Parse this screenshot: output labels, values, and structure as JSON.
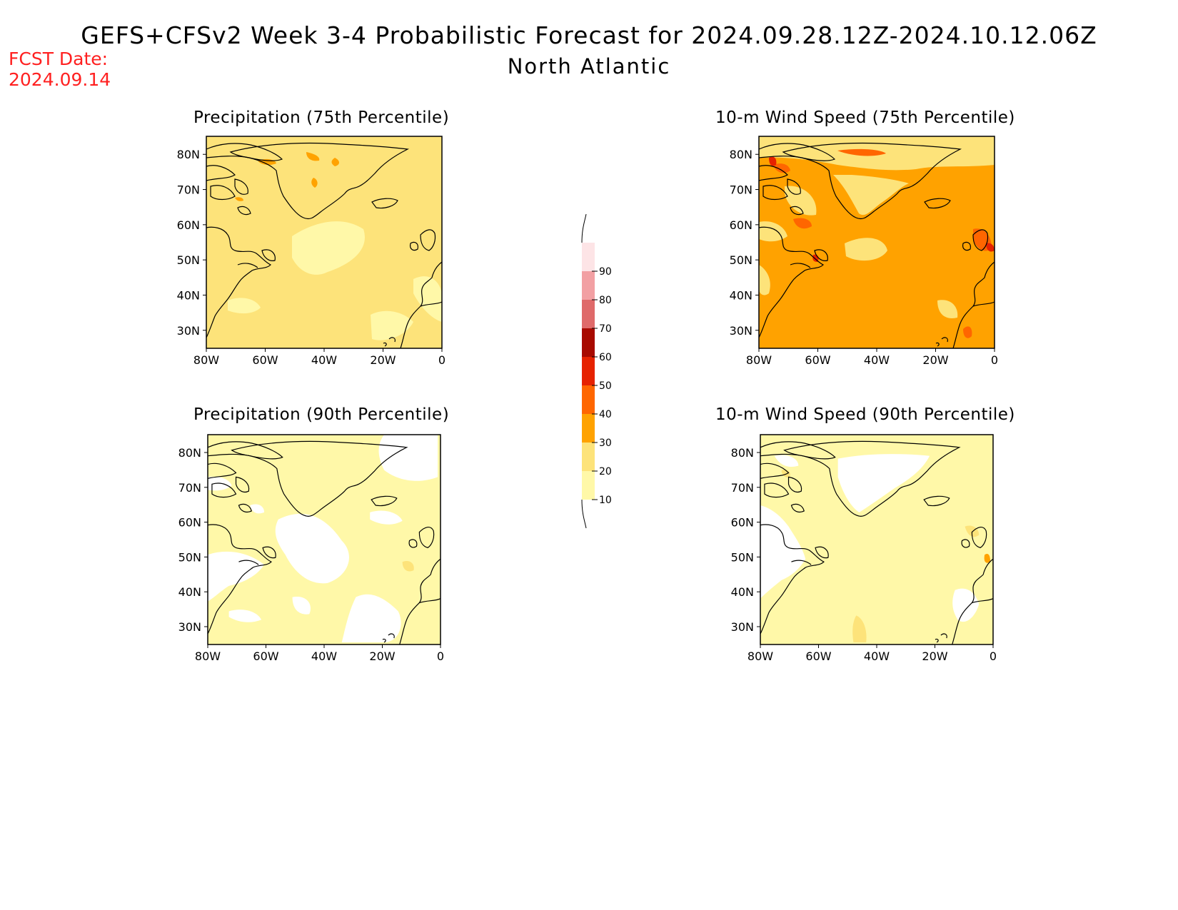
{
  "header": {
    "title": "GEFS+CFSv2 Week 3-4 Probabilistic Forecast for 2024.09.28.12Z-2024.10.12.06Z",
    "subtitle": "North Atlantic",
    "fcst_label": "FCST Date:",
    "fcst_date": "2024.09.14"
  },
  "panels": [
    {
      "title": "Precipitation (75th Percentile)",
      "background_level": "20-30"
    },
    {
      "title": "10-m Wind Speed (75th Percentile)",
      "background_level": "30-40"
    },
    {
      "title": "Precipitation (90th Percentile)",
      "background_level": "10-20"
    },
    {
      "title": "10-m Wind Speed (90th Percentile)",
      "background_level": "10-20"
    }
  ],
  "axes": {
    "lat_ticks": [
      "80N",
      "70N",
      "60N",
      "50N",
      "40N",
      "30N"
    ],
    "lon_ticks": [
      "80W",
      "60W",
      "40W",
      "20W",
      "0"
    ]
  },
  "colorbar": {
    "levels": [
      "10",
      "20",
      "30",
      "40",
      "50",
      "60",
      "70",
      "80",
      "90"
    ],
    "colors": {
      "10-20": "#fff8a8",
      "20-30": "#fde37a",
      "30-40": "#ffa200",
      "40-50": "#ff6600",
      "50-60": "#e62200",
      "60-70": "#a80a00",
      "70-80": "#df6a6a",
      "80-90": "#f2a0a3",
      "90+": "#fde4e6"
    }
  }
}
